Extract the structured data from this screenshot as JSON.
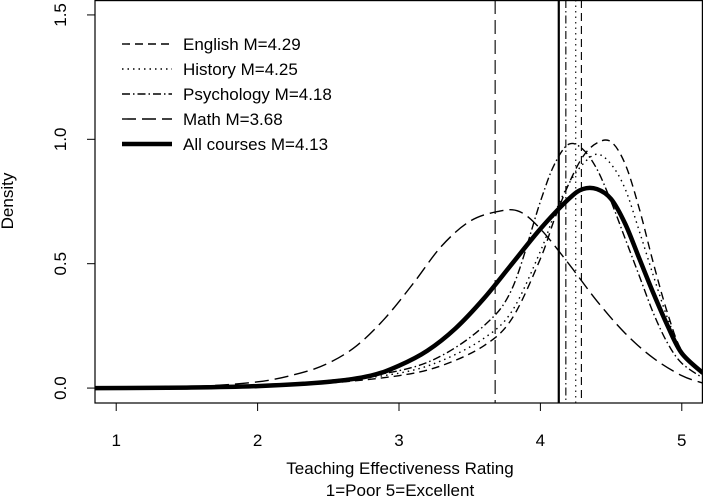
{
  "chart_data": {
    "type": "line",
    "xlabel": "Teaching Effectiveness Rating",
    "xlabel_sub": "1=Poor 5=Excellent",
    "ylabel": "Density",
    "xlim": [
      0.85,
      5.15
    ],
    "ylim": [
      -0.06,
      1.56
    ],
    "x_ticks": [
      1,
      2,
      3,
      4,
      5
    ],
    "y_ticks": [
      0.0,
      0.5,
      1.0,
      1.5
    ],
    "y_tick_labels": [
      "0.0",
      "0.5",
      "1.0",
      "1.5"
    ],
    "legend_position": "top-left",
    "series": [
      {
        "name": "English M=4.29",
        "dash": "8,5",
        "width": 1.4,
        "mean": 4.29,
        "x": [
          0.85,
          1.5,
          2.0,
          2.5,
          3.0,
          3.3,
          3.6,
          3.8,
          4.0,
          4.1,
          4.2,
          4.3,
          4.4,
          4.5,
          4.6,
          4.7,
          4.8,
          4.9,
          5.0,
          5.15
        ],
        "y": [
          0.0,
          0.002,
          0.008,
          0.02,
          0.05,
          0.09,
          0.17,
          0.28,
          0.52,
          0.68,
          0.82,
          0.93,
          0.985,
          0.99,
          0.9,
          0.72,
          0.5,
          0.3,
          0.15,
          0.06
        ]
      },
      {
        "name": "History M=4.25",
        "dash": "1.5,4",
        "width": 1.4,
        "mean": 4.25,
        "x": [
          0.85,
          1.5,
          2.0,
          2.5,
          3.0,
          3.3,
          3.6,
          3.8,
          4.0,
          4.1,
          4.2,
          4.3,
          4.4,
          4.5,
          4.6,
          4.7,
          4.8,
          4.9,
          5.0,
          5.15
        ],
        "y": [
          0.0,
          0.002,
          0.01,
          0.025,
          0.06,
          0.11,
          0.2,
          0.31,
          0.55,
          0.7,
          0.82,
          0.9,
          0.94,
          0.9,
          0.8,
          0.63,
          0.45,
          0.28,
          0.15,
          0.06
        ]
      },
      {
        "name": "Psychology M=4.18",
        "dash": "8,3,1.5,3",
        "width": 1.4,
        "mean": 4.18,
        "x": [
          0.85,
          1.5,
          2.0,
          2.5,
          3.0,
          3.3,
          3.6,
          3.8,
          4.0,
          4.1,
          4.2,
          4.3,
          4.4,
          4.5,
          4.6,
          4.7,
          4.8,
          4.9,
          5.0,
          5.15
        ],
        "y": [
          0.0,
          0.002,
          0.01,
          0.03,
          0.07,
          0.13,
          0.25,
          0.4,
          0.75,
          0.9,
          0.98,
          0.96,
          0.88,
          0.75,
          0.6,
          0.45,
          0.3,
          0.18,
          0.1,
          0.04
        ]
      },
      {
        "name": "Math M=3.68",
        "dash": "14,6",
        "width": 1.4,
        "mean": 3.68,
        "x": [
          0.85,
          1.5,
          2.0,
          2.3,
          2.5,
          2.7,
          2.9,
          3.1,
          3.3,
          3.5,
          3.7,
          3.85,
          4.0,
          4.2,
          4.4,
          4.6,
          4.8,
          5.0,
          5.15
        ],
        "y": [
          0.0,
          0.005,
          0.025,
          0.06,
          0.1,
          0.17,
          0.28,
          0.42,
          0.57,
          0.67,
          0.71,
          0.71,
          0.64,
          0.5,
          0.35,
          0.22,
          0.12,
          0.05,
          0.02
        ]
      },
      {
        "name": "All courses M=4.13",
        "dash": "",
        "width": 4.5,
        "mean": 4.13,
        "x": [
          0.85,
          1.5,
          2.0,
          2.5,
          2.8,
          3.0,
          3.2,
          3.4,
          3.6,
          3.8,
          4.0,
          4.2,
          4.3,
          4.4,
          4.5,
          4.6,
          4.7,
          4.8,
          4.9,
          5.0,
          5.15
        ],
        "y": [
          0.0,
          0.002,
          0.008,
          0.025,
          0.05,
          0.09,
          0.15,
          0.24,
          0.36,
          0.5,
          0.64,
          0.76,
          0.8,
          0.8,
          0.76,
          0.66,
          0.52,
          0.38,
          0.25,
          0.14,
          0.06
        ]
      }
    ]
  }
}
